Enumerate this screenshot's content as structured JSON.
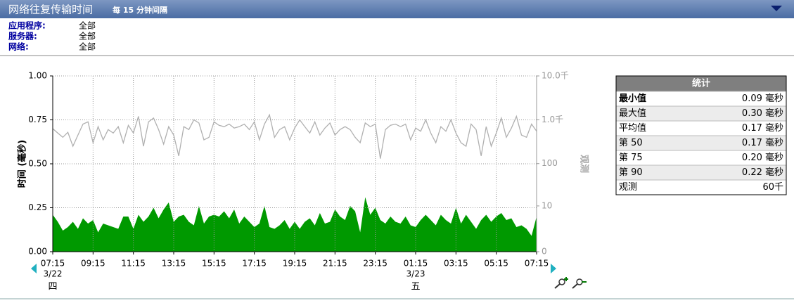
{
  "header": {
    "title": "网络往复传输时间",
    "interval": "每 15 分钟间隔"
  },
  "filters": [
    {
      "label": "应用程序:",
      "value": "全部"
    },
    {
      "label": "服务器:",
      "value": "全部"
    },
    {
      "label": "网络:",
      "value": "全部"
    }
  ],
  "chart_data": {
    "type": "area",
    "ylabel": "时间 (毫秒)",
    "y2label": "观测",
    "categories": [
      "07:15",
      null,
      null,
      null,
      null,
      null,
      null,
      null,
      "09:15",
      null,
      null,
      null,
      null,
      null,
      null,
      null,
      "11:15",
      null,
      null,
      null,
      null,
      null,
      null,
      null,
      "13:15",
      null,
      null,
      null,
      null,
      null,
      null,
      null,
      "15:15",
      null,
      null,
      null,
      null,
      null,
      null,
      null,
      "17:15",
      null,
      null,
      null,
      null,
      null,
      null,
      null,
      "19:15",
      null,
      null,
      null,
      null,
      null,
      null,
      null,
      "21:15",
      null,
      null,
      null,
      null,
      null,
      null,
      null,
      "23:15",
      null,
      null,
      null,
      null,
      null,
      null,
      null,
      "01:15",
      null,
      null,
      null,
      null,
      null,
      null,
      null,
      "03:15",
      null,
      null,
      null,
      null,
      null,
      null,
      null,
      "05:15",
      null,
      null,
      null,
      null,
      null,
      null,
      null,
      "07:15"
    ],
    "date_labels": [
      {
        "index": 0,
        "date": "3/22",
        "weekday": "四"
      },
      {
        "index": 72,
        "date": "3/23",
        "weekday": "五"
      }
    ],
    "ylim": [
      0,
      1
    ],
    "yticks": [
      {
        "value": 0,
        "label": "0.00"
      },
      {
        "value": 0.25,
        "label": "0.25"
      },
      {
        "value": 0.5,
        "label": "0.50"
      },
      {
        "value": 0.75,
        "label": "0.75"
      },
      {
        "value": 1,
        "label": "1.00"
      }
    ],
    "y2lim": [
      0,
      10000
    ],
    "y2scale": "log",
    "y2ticks": [
      0,
      10,
      100,
      {
        "value": 1000,
        "label": "1.0千"
      },
      {
        "value": 10000,
        "label": "10.0千"
      }
    ],
    "grid": true,
    "series": [
      {
        "type": "area",
        "color": "#009900",
        "values": [
          0.21,
          0.17,
          0.12,
          0.14,
          0.17,
          0.13,
          0.19,
          0.16,
          0.18,
          0.11,
          0.16,
          0.15,
          0.14,
          0.13,
          0.2,
          0.2,
          0.13,
          0.21,
          0.17,
          0.2,
          0.25,
          0.19,
          0.24,
          0.28,
          0.17,
          0.2,
          0.21,
          0.17,
          0.15,
          0.26,
          0.16,
          0.2,
          0.21,
          0.2,
          0.23,
          0.19,
          0.24,
          0.16,
          0.2,
          0.17,
          0.14,
          0.16,
          0.26,
          0.14,
          0.13,
          0.15,
          0.18,
          0.13,
          0.17,
          0.13,
          0.17,
          0.19,
          0.15,
          0.22,
          0.16,
          0.17,
          0.24,
          0.2,
          0.18,
          0.26,
          0.23,
          0.11,
          0.31,
          0.21,
          0.25,
          0.18,
          0.16,
          0.2,
          0.17,
          0.16,
          0.2,
          0.15,
          0.14,
          0.18,
          0.21,
          0.18,
          0.15,
          0.21,
          0.18,
          0.16,
          0.25,
          0.16,
          0.21,
          0.17,
          0.13,
          0.18,
          0.21,
          0.17,
          0.2,
          0.22,
          0.18,
          0.19,
          0.14,
          0.15,
          0.13,
          0.09,
          0.2
        ]
      },
      {
        "type": "line",
        "axis": "y2",
        "color": "#b0b0b0",
        "values": [
          630,
          500,
          400,
          520,
          250,
          450,
          800,
          900,
          300,
          700,
          350,
          600,
          500,
          700,
          300,
          750,
          500,
          1200,
          250,
          900,
          1100,
          600,
          280,
          700,
          450,
          150,
          700,
          600,
          1000,
          850,
          350,
          400,
          900,
          750,
          700,
          800,
          650,
          700,
          800,
          600,
          900,
          350,
          800,
          1300,
          400,
          600,
          700,
          350,
          650,
          1000,
          700,
          500,
          900,
          450,
          650,
          850,
          450,
          600,
          700,
          600,
          400,
          300,
          850,
          700,
          800,
          130,
          600,
          750,
          800,
          700,
          800,
          350,
          650,
          550,
          1000,
          500,
          300,
          700,
          550,
          1000,
          500,
          300,
          250,
          800,
          600,
          150,
          700,
          250,
          500,
          1100,
          400,
          650,
          1200,
          450,
          400,
          800,
          550
        ]
      }
    ]
  },
  "stats": {
    "title": "统计",
    "rows": [
      [
        "最小值",
        "0.09 毫秒"
      ],
      [
        "最大值",
        "0.30 毫秒"
      ],
      [
        "平均值",
        "0.17 毫秒"
      ],
      [
        "第 50",
        "0.17 毫秒"
      ],
      [
        "第 75",
        "0.20 毫秒"
      ],
      [
        "第 90",
        "0.22 毫秒"
      ],
      [
        "观测",
        "60千"
      ]
    ]
  }
}
